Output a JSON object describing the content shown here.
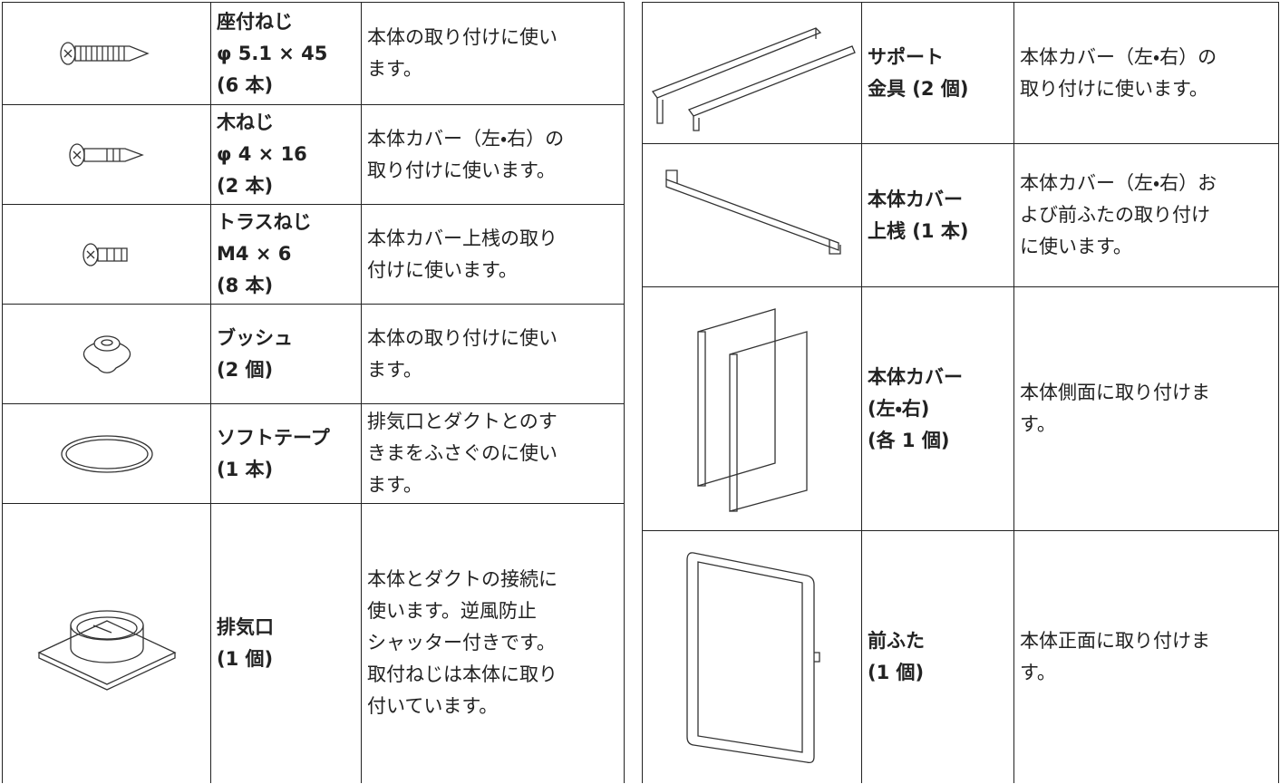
{
  "left_table": {
    "rows": [
      {
        "name": [
          "座付ねじ",
          "φ 5.1 × 45",
          "(6 本)"
        ],
        "description": [
          "本体の取り付けに使い",
          "ます。"
        ]
      },
      {
        "name": [
          "木ねじ",
          "φ 4 × 16",
          "(2 本)"
        ],
        "description": [
          "本体カバー（左・右）の",
          "取り付けに使います。"
        ]
      },
      {
        "name": [
          "トラスねじ",
          "M4 × 6",
          "(8 本)"
        ],
        "description": [
          "本体カバー上桟の取り",
          "付けに使います。"
        ]
      },
      {
        "name": [
          "ブッシュ",
          "(2 個)"
        ],
        "description": [
          "本体の取り付けに使い",
          "ます。"
        ]
      },
      {
        "name": [
          "ソフトテープ",
          "(1 本)"
        ],
        "description": [
          "排気口とダクトとのす",
          "きまをふさぐのに使い",
          "ます。"
        ]
      },
      {
        "name": [
          "排気口",
          "(1 個)"
        ],
        "description": [
          "本体とダクトの接続に",
          "使います。逆風防止",
          "シャッター付きです。",
          "取付ねじは本体に取り",
          "付いています。"
        ]
      }
    ]
  },
  "right_table": {
    "rows": [
      {
        "name": [
          "サポート",
          "金具 (2 個)"
        ],
        "description": [
          "本体カバー（左・右）の",
          "取り付けに使います。"
        ]
      },
      {
        "name": [
          "本体カバー",
          "上桟 (1 本)"
        ],
        "description": [
          "本体カバー（左・右）お",
          "よび前ふたの取り付け",
          "に使います。"
        ]
      },
      {
        "name": [
          "本体カバー",
          "(左・右)",
          "(各 1 個)"
        ],
        "description": [
          "本体側面に取り付けま",
          "す。"
        ]
      },
      {
        "name": [
          "前ふた",
          "(1 個)"
        ],
        "description": [
          "本体正面に取り付けま",
          "す。"
        ]
      }
    ]
  }
}
